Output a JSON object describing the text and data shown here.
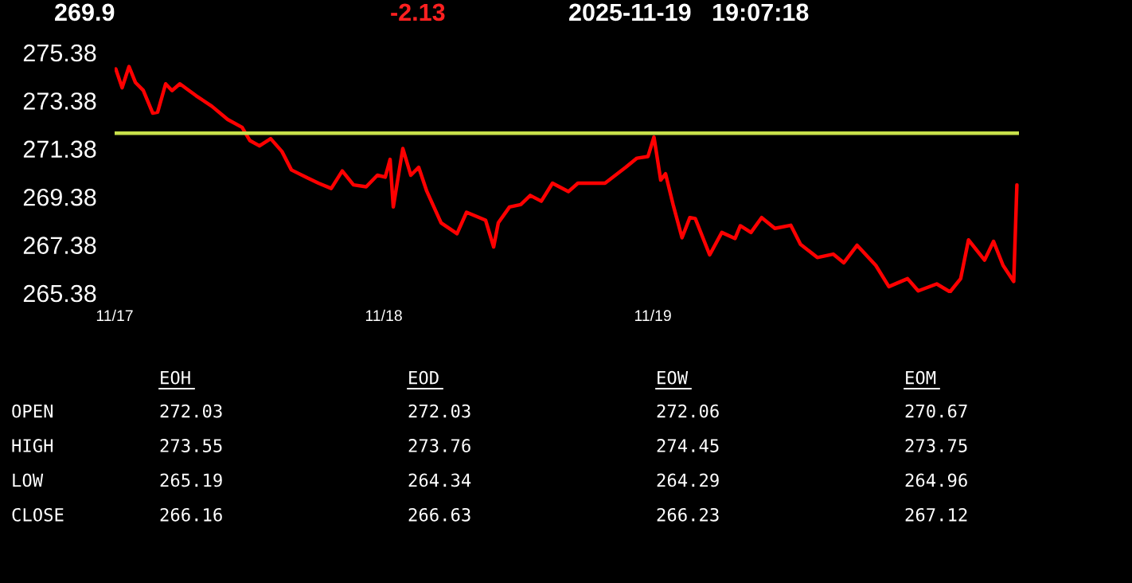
{
  "chart_data": {
    "type": "line",
    "title": "269.9",
    "subtitle": "-2.13",
    "annotations": [
      "2025-11-19   19:07:18",
      "EOH",
      "EOD",
      "EOW",
      "EOM",
      "OPEN",
      "272.03",
      "272.03",
      "272.06",
      "270.67",
      "HIGH",
      "273.55",
      "273.76",
      "274.45",
      "273.75",
      "LOW",
      "265.19",
      "264.34",
      "264.29",
      "264.96",
      "CLOSE",
      "266.16",
      "266.63",
      "266.23",
      "267.12"
    ],
    "series": [
      {
        "color": "#ff0000",
        "x": [
          "2025-11-17T00:06",
          "2025-11-17T00:40",
          "2025-11-17T01:17",
          "2025-11-17T01:51",
          "2025-11-17T02:33",
          "2025-11-17T03:24",
          "2025-11-17T03:50",
          "2025-11-17T04:33",
          "2025-11-17T05:07",
          "2025-11-17T05:49",
          "2025-11-17T07:15",
          "2025-11-17T08:40",
          "2025-11-17T10:05",
          "2025-11-17T11:22",
          "2025-11-17T12:04",
          "2025-11-17T12:55",
          "2025-11-17T13:55",
          "2025-11-17T14:55",
          "2025-11-17T15:46",
          "2025-11-17T17:11",
          "2025-11-17T18:11",
          "2025-11-17T19:19",
          "2025-11-17T20:18",
          "2025-11-17T21:18",
          "2025-11-17T22:26",
          "2025-11-17T23:26",
          "2025-11-18T00:08",
          "2025-11-18T00:34",
          "2025-11-18T00:51",
          "2025-11-18T01:42",
          "2025-11-18T02:25",
          "2025-11-18T03:07",
          "2025-11-18T03:50",
          "2025-11-18T05:07",
          "2025-11-18T06:32",
          "2025-11-18T07:23",
          "2025-11-18T09:05",
          "2025-11-18T09:48",
          "2025-11-18T10:13",
          "2025-11-18T11:13",
          "2025-11-18T12:13",
          "2025-11-18T13:04",
          "2025-11-18T14:03",
          "2025-11-18T15:03",
          "2025-11-18T15:29",
          "2025-11-18T16:28",
          "2025-11-18T17:19",
          "2025-11-18T19:44",
          "2025-11-18T21:35",
          "2025-11-18T22:35",
          "2025-11-18T23:34",
          "2025-11-19T00:06",
          "2025-11-19T00:42",
          "2025-11-19T01:08",
          "2025-11-19T01:48",
          "2025-11-19T02:36",
          "2025-11-19T03:18",
          "2025-11-19T03:47",
          "2025-11-19T05:04",
          "2025-11-19T06:09",
          "2025-11-19T07:20",
          "2025-11-19T07:48",
          "2025-11-19T08:45",
          "2025-11-19T09:42",
          "2025-11-19T10:53",
          "2025-11-19T12:18",
          "2025-11-19T13:10",
          "2025-11-19T14:40",
          "2025-11-19T16:05",
          "2025-11-19T17:02",
          "2025-11-19T18:13",
          "2025-11-19T19:53",
          "2025-11-19T21:03",
          "2025-11-19T22:43",
          "2025-11-19T23:40",
          "2025-11-20T01:19",
          "2025-11-20T02:30",
          "2025-11-20T03:27",
          "2025-11-20T04:09",
          "2025-11-20T05:35",
          "2025-11-20T06:23",
          "2025-11-20T07:14",
          "2025-11-20T08:11",
          "2025-11-20T08:28"
        ],
        "values": [
          274.7,
          273.92,
          274.8,
          274.14,
          273.81,
          272.86,
          272.9,
          274.08,
          273.8,
          274.08,
          273.59,
          273.15,
          272.6,
          272.27,
          271.72,
          271.5,
          271.8,
          271.27,
          270.5,
          270.17,
          269.95,
          269.73,
          270.46,
          269.88,
          269.8,
          270.28,
          270.2,
          270.94,
          268.96,
          271.39,
          270.28,
          270.61,
          269.62,
          268.3,
          267.85,
          268.74,
          268.41,
          267.3,
          268.3,
          268.96,
          269.06,
          269.44,
          269.2,
          269.95,
          269.84,
          269.6,
          269.95,
          269.95,
          270.61,
          270.99,
          271.06,
          271.87,
          270.08,
          270.34,
          269.07,
          267.68,
          268.52,
          268.48,
          266.97,
          267.9,
          267.65,
          268.18,
          267.9,
          268.52,
          268.07,
          268.2,
          267.41,
          266.86,
          267.0,
          266.64,
          267.37,
          266.53,
          265.65,
          265.98,
          265.47,
          265.76,
          265.43,
          265.98,
          267.59,
          266.75,
          267.53,
          266.53,
          265.86,
          269.88
        ]
      }
    ],
    "xlim": [
      "2025-11-17T00:00",
      "2025-11-20T08:39"
    ],
    "xticks": [
      {
        "value": "2025-11-17",
        "label": "11/17"
      },
      {
        "value": "2025-11-18",
        "label": "11/18"
      },
      {
        "value": "2025-11-19",
        "label": "11/19"
      }
    ],
    "ylim": [
      265.38,
      275.38
    ],
    "yticks": [
      {
        "value": 265.38,
        "label": "265.38"
      },
      {
        "value": 267.38,
        "label": "267.38"
      },
      {
        "value": 269.38,
        "label": "269.38"
      },
      {
        "value": 271.38,
        "label": "271.38"
      },
      {
        "value": 273.38,
        "label": "273.38"
      },
      {
        "value": 275.38,
        "label": "275.38"
      }
    ],
    "ref_lines": [
      {
        "axis": "y",
        "value": 272.03,
        "color": "#c8e04a"
      }
    ],
    "grid": false,
    "legend": false,
    "marker": "none",
    "line_style": "solid"
  }
}
